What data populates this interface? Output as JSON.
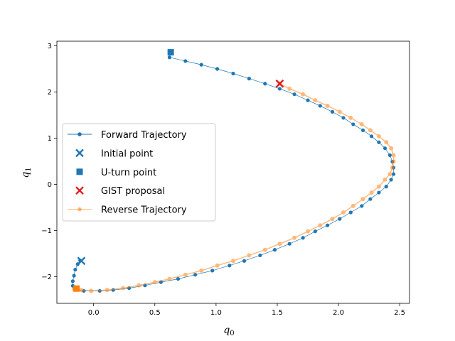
{
  "chart_data": {
    "type": "scatter",
    "xlabel": "q",
    "xlabel_sub": "0",
    "ylabel": "q",
    "ylabel_sub": "1",
    "xlim": [
      -0.3,
      2.58
    ],
    "ylim": [
      -2.58,
      3.1
    ],
    "xticks": [
      0.0,
      0.5,
      1.0,
      1.5,
      2.0,
      2.5
    ],
    "xtick_labels": [
      "0.0",
      "0.5",
      "1.0",
      "1.5",
      "2.0",
      "2.5"
    ],
    "yticks": [
      -2,
      -1,
      0,
      1,
      2,
      3
    ],
    "ytick_labels": [
      "−2",
      "−1",
      "0",
      "1",
      "2",
      "3"
    ],
    "legend_position": "center-left",
    "legend": [
      {
        "label": "Forward Trajectory",
        "kind": "line-dot",
        "color": "#1f77b4"
      },
      {
        "label": "Initial point",
        "kind": "x",
        "color": "#1f77b4"
      },
      {
        "label": "U-turn point",
        "kind": "square",
        "color": "#1f77b4"
      },
      {
        "label": "GIST proposal",
        "kind": "x",
        "color": "#e31a1c"
      },
      {
        "label": "Reverse Trajectory",
        "kind": "line-dot",
        "color": "#ff7f0e"
      }
    ],
    "series": [
      {
        "name": "Forward Trajectory",
        "color": "#1f77b4",
        "x": [
          -0.11,
          -0.13,
          -0.15,
          -0.16,
          -0.17,
          -0.17,
          -0.15,
          -0.08,
          0.05,
          0.16,
          0.29,
          0.42,
          0.55,
          0.69,
          0.83,
          0.97,
          1.11,
          1.23,
          1.36,
          1.48,
          1.6,
          1.71,
          1.81,
          1.91,
          2.01,
          2.1,
          2.19,
          2.26,
          2.33,
          2.39,
          2.43,
          2.45,
          2.45,
          2.44,
          2.42,
          2.38,
          2.33,
          2.27,
          2.2,
          2.12,
          2.04,
          1.95,
          1.85,
          1.75,
          1.64,
          1.52,
          1.4,
          1.27,
          1.14,
          1.01,
          0.88,
          0.75,
          0.62
        ],
        "y": [
          -1.65,
          -1.73,
          -1.85,
          -1.98,
          -2.1,
          -2.2,
          -2.27,
          -2.31,
          -2.31,
          -2.29,
          -2.25,
          -2.19,
          -2.12,
          -2.05,
          -1.96,
          -1.87,
          -1.76,
          -1.66,
          -1.54,
          -1.42,
          -1.29,
          -1.16,
          -1.02,
          -0.89,
          -0.75,
          -0.61,
          -0.47,
          -0.32,
          -0.18,
          -0.05,
          0.1,
          0.22,
          0.36,
          0.49,
          0.63,
          0.78,
          0.91,
          1.04,
          1.17,
          1.3,
          1.44,
          1.57,
          1.7,
          1.82,
          1.95,
          2.07,
          2.18,
          2.29,
          2.4,
          2.5,
          2.59,
          2.67,
          2.75
        ]
      },
      {
        "name": "Reverse Trajectory",
        "color": "#ff7f0e",
        "x": [
          1.52,
          1.6,
          1.71,
          1.81,
          1.91,
          2.01,
          2.1,
          2.19,
          2.26,
          2.33,
          2.39,
          2.43,
          2.45,
          2.45,
          2.44,
          2.42,
          2.38,
          2.33,
          2.27,
          2.2,
          2.12,
          2.04,
          1.95,
          1.85,
          1.75,
          1.64,
          1.52,
          1.4,
          1.27,
          1.14,
          1.01,
          0.88,
          0.75,
          0.62,
          0.5,
          0.37,
          0.24,
          0.11,
          -0.02,
          -0.1,
          -0.16
        ],
        "y": [
          2.18,
          2.07,
          1.95,
          1.82,
          1.7,
          1.57,
          1.44,
          1.3,
          1.17,
          1.04,
          0.91,
          0.78,
          0.63,
          0.49,
          0.36,
          0.22,
          0.1,
          -0.05,
          -0.18,
          -0.32,
          -0.47,
          -0.61,
          -0.75,
          -0.89,
          -1.02,
          -1.16,
          -1.29,
          -1.42,
          -1.54,
          -1.66,
          -1.76,
          -1.87,
          -1.96,
          -2.05,
          -2.12,
          -2.19,
          -2.25,
          -2.29,
          -2.31,
          -2.29,
          -2.27
        ]
      }
    ],
    "points": {
      "initial": {
        "x": -0.1,
        "y": -1.66,
        "marker": "x",
        "color": "#1f77b4"
      },
      "u_turn": {
        "x": 0.63,
        "y": 2.86,
        "marker": "square",
        "color": "#1f77b4"
      },
      "gist": {
        "x": 1.52,
        "y": 2.18,
        "marker": "x",
        "color": "#e31a1c"
      },
      "reverse_end": {
        "x": -0.14,
        "y": -2.26,
        "marker": "square",
        "color": "#ff7f0e"
      }
    }
  }
}
